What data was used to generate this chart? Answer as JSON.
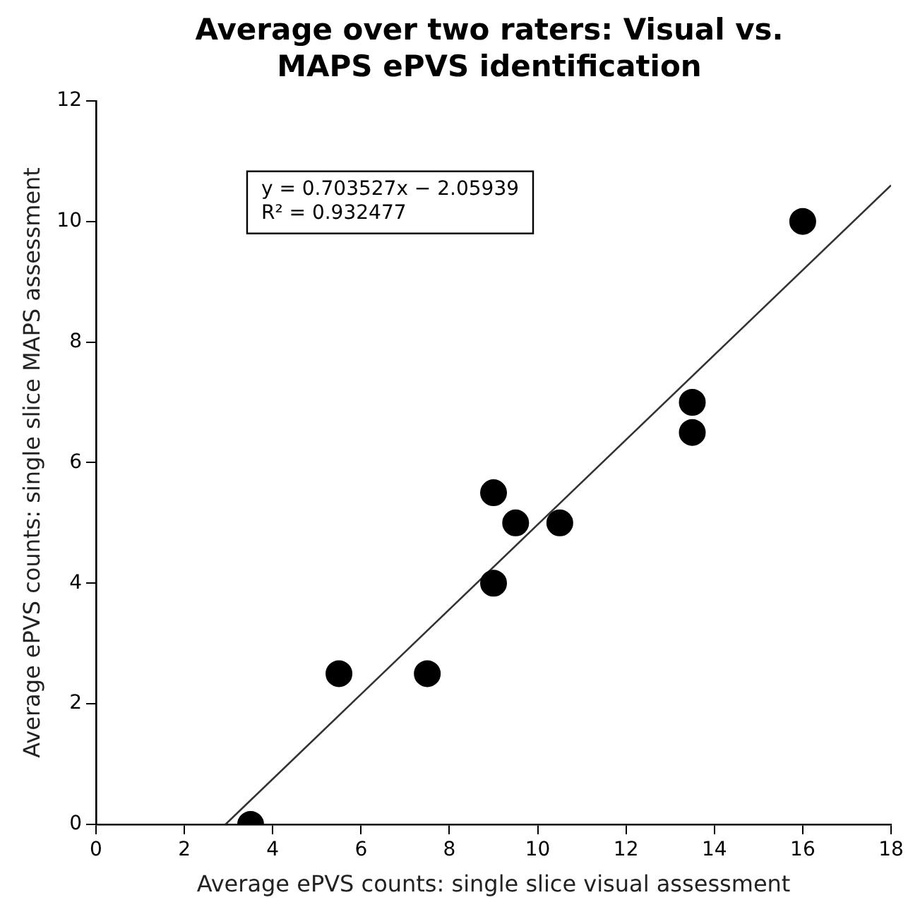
{
  "chart_data": {
    "type": "scatter",
    "title": "Average over two raters: Visual vs. MAPS ePVS identification",
    "xlabel": "Average ePVS counts: single slice visual assessment",
    "ylabel": "Average ePVS counts: single slice MAPS assessment",
    "series": [
      {
        "type": "scatter",
        "color": "#000000",
        "marker": "circle",
        "x": [
          3.5,
          5.5,
          7.5,
          9,
          9,
          9.5,
          10.5,
          13.5,
          13.5,
          16
        ],
        "values": [
          0,
          2.5,
          2.5,
          4,
          5.5,
          5,
          5,
          7,
          6.5,
          10
        ]
      },
      {
        "type": "line",
        "color": "#333333",
        "marker": "none",
        "x": [
          2.93,
          18
        ],
        "values": [
          0,
          10.6
        ]
      }
    ],
    "annotations": [
      "y = 0.703527x − 2.05939",
      "R² = 0.932477"
    ],
    "xlim": [
      0,
      18
    ],
    "xticks": [
      0,
      2,
      4,
      6,
      8,
      10,
      12,
      14,
      16,
      18
    ],
    "ylim": [
      0,
      12
    ],
    "yticks": [
      0,
      2,
      4,
      6,
      8,
      10,
      12
    ],
    "grid": false,
    "legend": false
  }
}
